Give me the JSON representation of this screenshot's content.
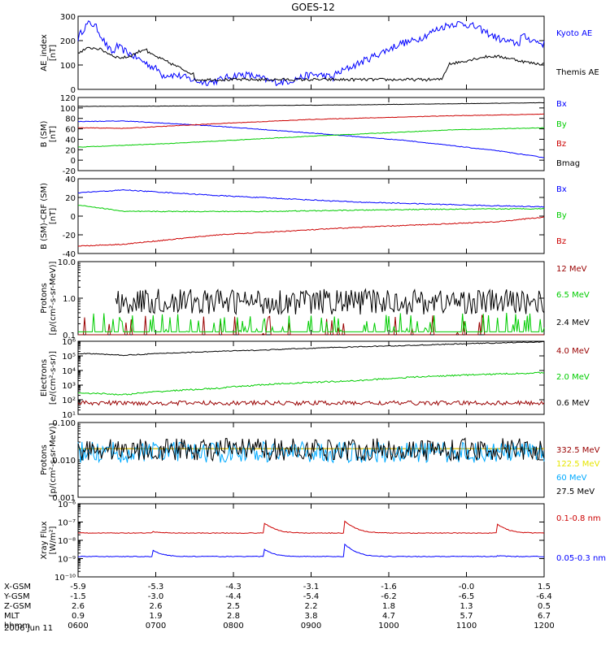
{
  "title": "GOES-12",
  "date_label": "2006 Jun 11",
  "colors": {
    "black": "#000000",
    "blue": "#0000ff",
    "red": "#cc0000",
    "green": "#00cc00",
    "yellow": "#e6e600",
    "cyan": "#00aaff",
    "darkred": "#990000"
  },
  "chart_data": [
    {
      "type": "line",
      "ylabel": [
        "AE_index",
        "[nT]"
      ],
      "ylim": [
        0,
        300
      ],
      "yscale": "linear",
      "ticks": [
        [
          0,
          "0"
        ],
        [
          100,
          "100"
        ],
        [
          200,
          "200"
        ],
        [
          300,
          "300"
        ]
      ],
      "series": [
        {
          "name": "Kyoto AE",
          "color": "blue",
          "gen": "kyoto"
        },
        {
          "name": "Themis AE",
          "color": "black",
          "gen": "themis"
        }
      ]
    },
    {
      "type": "line",
      "ylabel": [
        "B (SM)",
        "[nT]"
      ],
      "ylim": [
        -20,
        120
      ],
      "yscale": "linear",
      "ticks": [
        [
          -20,
          "-20"
        ],
        [
          0,
          "0"
        ],
        [
          20,
          "20"
        ],
        [
          40,
          "40"
        ],
        [
          60,
          "60"
        ],
        [
          80,
          "80"
        ],
        [
          100,
          "100"
        ],
        [
          120,
          "120"
        ]
      ],
      "series": [
        {
          "name": "Bx",
          "color": "blue",
          "x": [
            0,
            0.1,
            0.3,
            0.5,
            0.7,
            0.9,
            1
          ],
          "y": [
            74,
            75,
            65,
            52,
            38,
            18,
            5
          ],
          "noise": 0.6
        },
        {
          "name": "By",
          "color": "green",
          "x": [
            0,
            0.2,
            0.5,
            0.8,
            1
          ],
          "y": [
            25,
            32,
            46,
            58,
            62
          ],
          "noise": 0.5
        },
        {
          "name": "Bz",
          "color": "red",
          "x": [
            0,
            0.1,
            0.3,
            0.5,
            0.8,
            1
          ],
          "y": [
            62,
            61,
            70,
            78,
            85,
            88
          ],
          "noise": 0.5
        },
        {
          "name": "Bmag",
          "color": "black",
          "x": [
            0,
            0.3,
            0.6,
            1
          ],
          "y": [
            103,
            104,
            106,
            110
          ],
          "noise": 0.3
        }
      ]
    },
    {
      "type": "line",
      "ylabel": [
        "B (SM)-CRF (SM)",
        "[nT]"
      ],
      "ylim": [
        -40,
        40
      ],
      "yscale": "linear",
      "ticks": [
        [
          -40,
          "-40"
        ],
        [
          -20,
          "-20"
        ],
        [
          0,
          "0"
        ],
        [
          20,
          "20"
        ],
        [
          40,
          "40"
        ]
      ],
      "series": [
        {
          "name": "Bx",
          "color": "blue",
          "x": [
            0,
            0.1,
            0.3,
            0.6,
            0.9,
            1
          ],
          "y": [
            25,
            28,
            22,
            15,
            11,
            10
          ],
          "noise": 0.5
        },
        {
          "name": "By",
          "color": "green",
          "x": [
            0,
            0.1,
            0.4,
            0.7,
            1
          ],
          "y": [
            12,
            5,
            5,
            7,
            8
          ],
          "noise": 0.5
        },
        {
          "name": "Bz",
          "color": "red",
          "x": [
            0,
            0.1,
            0.3,
            0.6,
            0.9,
            1
          ],
          "y": [
            -32,
            -30,
            -20,
            -12,
            -6,
            -1
          ],
          "noise": 0.5
        }
      ]
    },
    {
      "type": "line",
      "ylabel": [
        "Protons",
        "[p/(cm²-s-sr-MeV)]"
      ],
      "ylim": [
        0.1,
        10
      ],
      "yscale": "log",
      "ticks": [
        [
          0.1,
          "0.1"
        ],
        [
          1,
          "1.0"
        ],
        [
          10,
          "10.0"
        ]
      ],
      "series": [
        {
          "name": "12 MeV",
          "color": "darkred",
          "gen": "spike",
          "level": 0.1,
          "peak": 0.35,
          "prob": 0.08
        },
        {
          "name": "6.5 MeV",
          "color": "green",
          "gen": "spike",
          "level": 0.12,
          "peak": 0.4,
          "prob": 0.2
        },
        {
          "name": "2.4 MeV",
          "color": "black",
          "gen": "noisylog",
          "base": 0.8,
          "amp": 0.35,
          "start": 0.08
        }
      ]
    },
    {
      "type": "line",
      "ylabel": [
        "Electrons",
        "[e/(cm²-s-sr)]"
      ],
      "ylim": [
        10,
        1000000
      ],
      "yscale": "log",
      "ticks": [
        [
          10,
          "10¹"
        ],
        [
          100,
          "10²"
        ],
        [
          1000,
          "10³"
        ],
        [
          10000,
          "10⁴"
        ],
        [
          100000,
          "10⁵"
        ],
        [
          1000000,
          "10⁶"
        ]
      ],
      "series": [
        {
          "name": "4.0 MeV",
          "color": "darkred",
          "x": [
            0,
            1
          ],
          "y": [
            60,
            60
          ],
          "noise": 0.15
        },
        {
          "name": "2.0 MeV",
          "color": "green",
          "x": [
            0,
            0.1,
            0.3,
            0.6,
            1
          ],
          "y": [
            300,
            220,
            600,
            2000,
            7000
          ],
          "noise": 0.05
        },
        {
          "name": "0.6 MeV",
          "color": "black",
          "x": [
            0,
            0.1,
            0.4,
            0.7,
            1
          ],
          "y": [
            150000,
            110000,
            250000,
            500000,
            900000
          ],
          "noise": 0.03
        }
      ]
    },
    {
      "type": "line",
      "ylabel": [
        "Protons",
        "[p/(cm²-s-sr-MeV)]"
      ],
      "ylim": [
        0.001,
        0.1
      ],
      "yscale": "log",
      "ticks": [
        [
          0.001,
          "0.001"
        ],
        [
          0.01,
          "0.010"
        ],
        [
          0.1,
          "0.100"
        ]
      ],
      "series": [
        {
          "name": "332.5 MeV",
          "color": "darkred",
          "x": [
            0,
            1
          ],
          "y": [
            0.02,
            0.02
          ],
          "noise": 0
        },
        {
          "name": "122.5 MeV",
          "color": "yellow",
          "x": [
            0,
            1
          ],
          "y": [
            0.02,
            0.02
          ],
          "noise": 0
        },
        {
          "name": "60 MeV",
          "color": "cyan",
          "gen": "noisylog",
          "base": 0.016,
          "amp": 0.28,
          "start": 0
        },
        {
          "name": "27.5 MeV",
          "color": "black",
          "gen": "noisylog",
          "base": 0.019,
          "amp": 0.3,
          "start": 0
        }
      ]
    },
    {
      "type": "line",
      "ylabel": [
        "Xray Flux",
        "[W/m²]"
      ],
      "ylim": [
        1e-10,
        1e-06
      ],
      "yscale": "log",
      "ticks": [
        [
          1e-10,
          "10⁻¹⁰"
        ],
        [
          1e-09,
          "10⁻⁹"
        ],
        [
          1e-08,
          "10⁻⁸"
        ],
        [
          1e-07,
          "10⁻⁷"
        ],
        [
          1e-06,
          "10⁻⁶"
        ]
      ],
      "series": [
        {
          "name": "0.1-0.8 nm",
          "color": "red",
          "gen": "xray",
          "base": 2.5e-08,
          "bumps": [
            [
              0.16,
              1.2
            ],
            [
              0.4,
              3.5
            ],
            [
              0.57,
              5
            ],
            [
              0.9,
              3
            ]
          ]
        },
        {
          "name": "0.05-0.3 nm",
          "color": "blue",
          "gen": "xray",
          "base": 1.3e-09,
          "bumps": [
            [
              0.16,
              2.2
            ],
            [
              0.4,
              2.4
            ],
            [
              0.57,
              5
            ],
            [
              0.9,
              1.1
            ]
          ]
        }
      ]
    }
  ],
  "x_axis": {
    "rows": [
      "X-GSM",
      "Y-GSM",
      "Z-GSM",
      "MLT",
      "hhmm"
    ],
    "cols": [
      [
        "-5.9",
        "-1.5",
        "2.6",
        "0.9",
        "0600"
      ],
      [
        "-5.3",
        "-3.0",
        "2.6",
        "1.9",
        "0700"
      ],
      [
        "-4.3",
        "-4.4",
        "2.5",
        "2.8",
        "0800"
      ],
      [
        "-3.1",
        "-5.4",
        "2.2",
        "3.8",
        "0900"
      ],
      [
        "-1.6",
        "-6.2",
        "1.8",
        "4.7",
        "1000"
      ],
      [
        "-0.0",
        "-6.5",
        "1.3",
        "5.7",
        "1100"
      ],
      [
        "1.5",
        "-6.4",
        "0.5",
        "6.7",
        "1200"
      ]
    ]
  }
}
